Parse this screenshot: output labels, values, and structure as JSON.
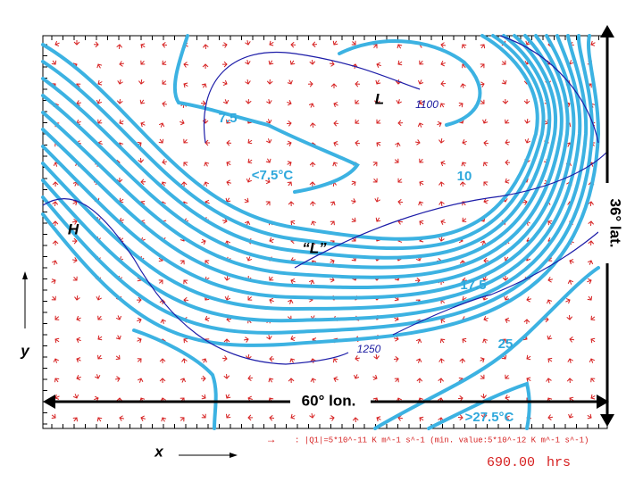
{
  "map": {
    "temperature_labels": [
      "7.5",
      "<7.5°C",
      "10",
      "17.5",
      "25",
      ">27.5°C"
    ],
    "pressure_labels": [
      "1100",
      "1250"
    ],
    "features": [
      "L",
      "“L”",
      "H"
    ],
    "extent": {
      "lon": "60° lon.",
      "lat": "36° lat."
    },
    "axes": {
      "x": "x",
      "y": "y"
    }
  },
  "legend": {
    "arrow": "→",
    "text": ": |Q1|=5*10^-11 K m^-1 s^-1 (min. value:5*10^-12 K m^-1 s^-1)"
  },
  "time": {
    "value": "690.00",
    "unit": "hrs"
  }
}
